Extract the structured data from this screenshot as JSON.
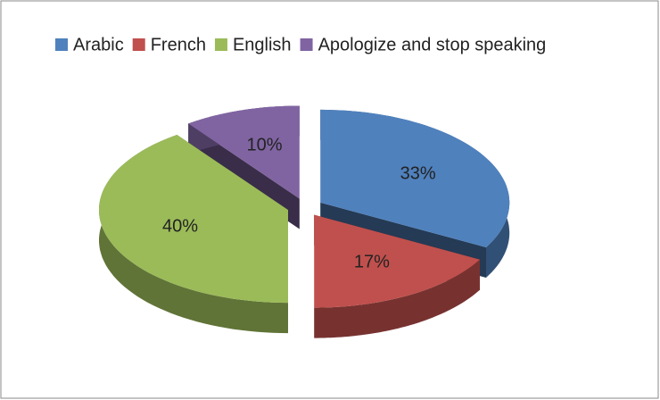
{
  "chart_data": {
    "type": "pie3d",
    "categories": [
      "Arabic",
      "French",
      "English",
      "Apologize and stop speaking"
    ],
    "values": [
      33,
      17,
      40,
      10
    ],
    "value_labels": [
      "33%",
      "17%",
      "40%",
      "10%"
    ],
    "colors": [
      "#4f81bd",
      "#c0504d",
      "#9bbb59",
      "#8064a2"
    ],
    "legend": "top"
  }
}
